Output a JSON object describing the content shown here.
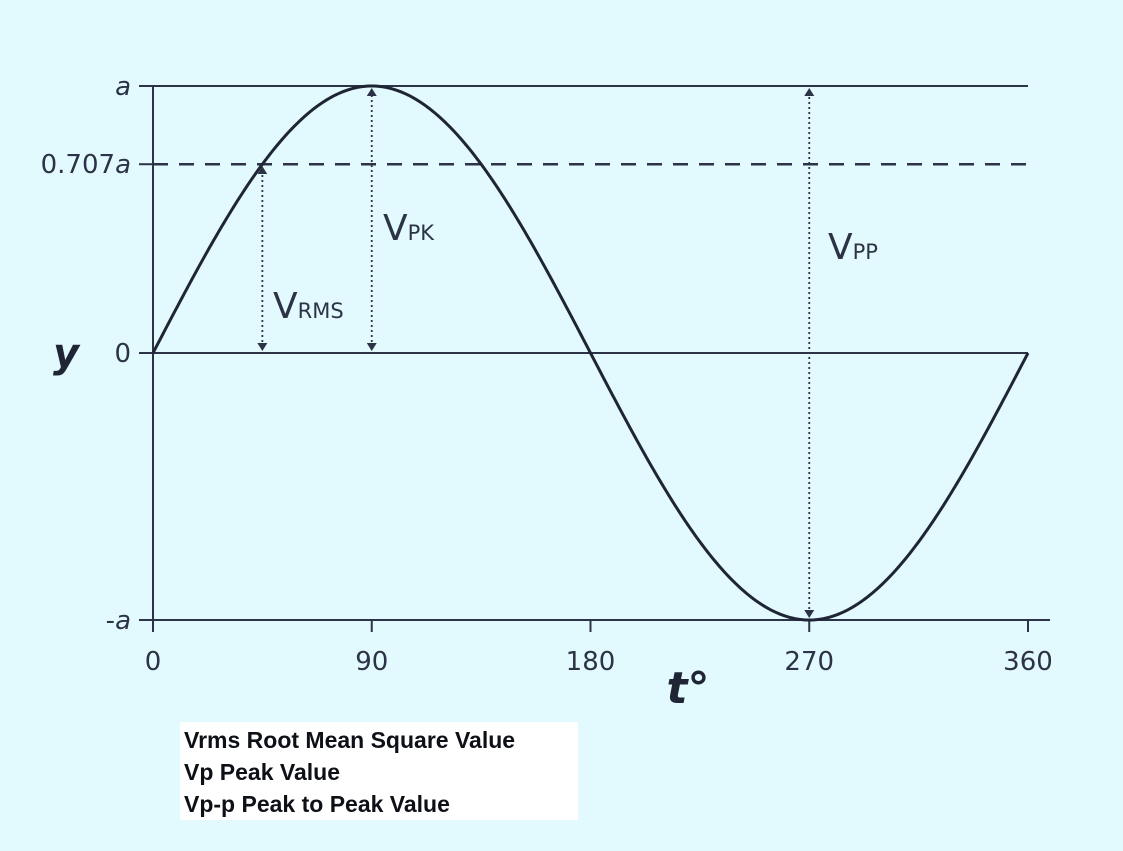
{
  "chart_data": {
    "type": "line",
    "x": [
      0,
      15,
      30,
      45,
      60,
      75,
      90,
      105,
      120,
      135,
      150,
      165,
      180,
      195,
      210,
      225,
      240,
      255,
      270,
      285,
      300,
      315,
      330,
      345,
      360
    ],
    "y": [
      0,
      0.259,
      0.5,
      0.707,
      0.866,
      0.966,
      1,
      0.966,
      0.866,
      0.707,
      0.5,
      0.259,
      0,
      -0.259,
      -0.5,
      -0.707,
      -0.866,
      -0.966,
      -1,
      -0.966,
      -0.866,
      -0.707,
      -0.5,
      -0.259,
      0
    ],
    "xlim": [
      0,
      360
    ],
    "ylim": [
      -1,
      1
    ],
    "xlabel": "t°",
    "ylabel": "y",
    "x_ticks": [
      "0",
      "90",
      "180",
      "270",
      "360"
    ],
    "y_ticks": [
      {
        "value": 1,
        "label": "a"
      },
      {
        "value": 0.707,
        "label": "0.707a"
      },
      {
        "value": 0,
        "label": "0"
      },
      {
        "value": -1,
        "label": "-a"
      }
    ],
    "grid": false,
    "annotations": {
      "vrms": {
        "main": "V",
        "sub": "RMS"
      },
      "vpk": {
        "main": "V",
        "sub": "PK"
      },
      "vpp": {
        "main": "V",
        "sub": "PP"
      }
    }
  },
  "legend": [
    "Vrms Root Mean Square Value",
    "Vp Peak Value",
    "Vp-p Peak to Peak Value"
  ],
  "colors": {
    "background": "#e2fafd",
    "curve": "#1f2535",
    "axes": "#2c3346",
    "legend_background": "#ffffff"
  }
}
